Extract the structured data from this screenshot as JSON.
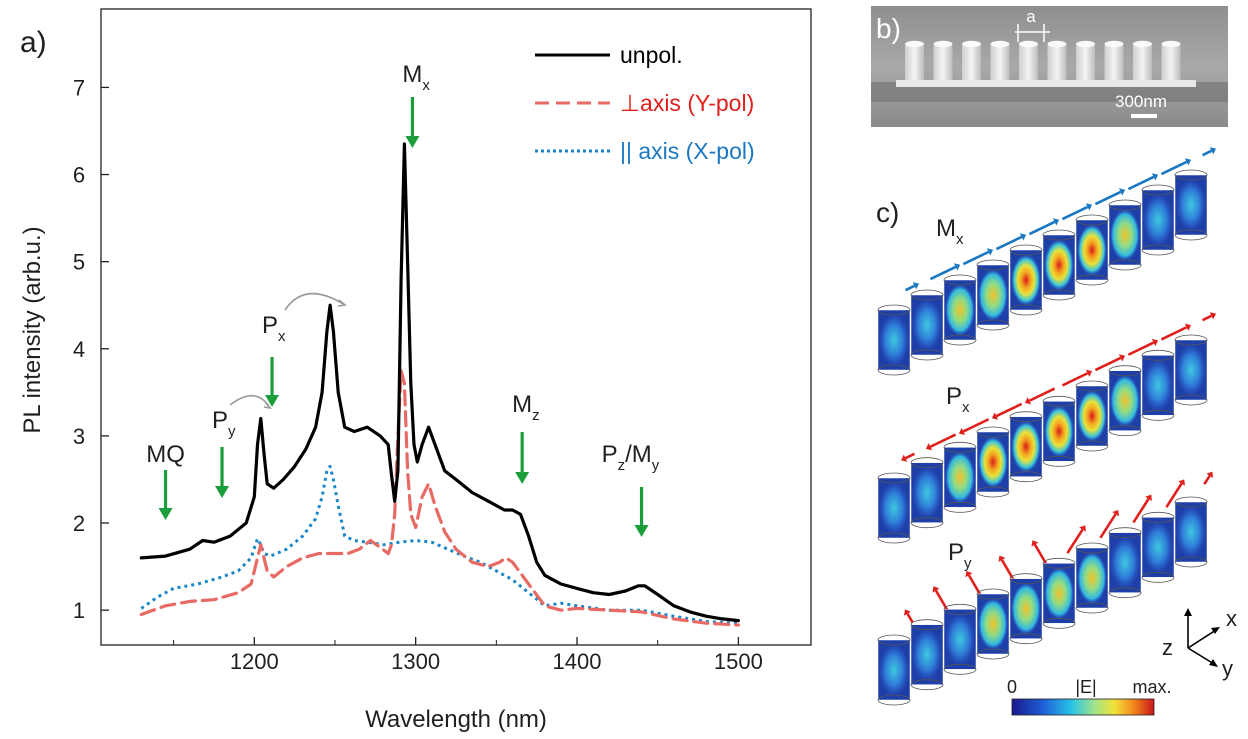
{
  "panels": {
    "a": "a)",
    "b": "b)",
    "c": "c)"
  },
  "chart_data": {
    "type": "line",
    "xlabel": "Wavelength (nm)",
    "ylabel": "PL intensity  (arb.u.)",
    "xlim": [
      1105,
      1545
    ],
    "ylim": [
      0.6,
      7.9
    ],
    "xticks": [
      1200,
      1300,
      1400,
      1500
    ],
    "yticks": [
      1,
      2,
      3,
      4,
      5,
      6,
      7
    ],
    "grid": false,
    "legend_position": "top-right",
    "series": [
      {
        "name": "unpol.",
        "color": "#000000",
        "dash": "solid",
        "x": [
          1130,
          1145,
          1160,
          1168,
          1175,
          1185,
          1195,
          1200,
          1202,
          1204,
          1206,
          1208,
          1212,
          1218,
          1225,
          1232,
          1238,
          1242,
          1245,
          1247,
          1249,
          1252,
          1256,
          1262,
          1270,
          1278,
          1283,
          1285,
          1287,
          1289,
          1291,
          1293,
          1295,
          1297,
          1299,
          1301,
          1304,
          1308,
          1312,
          1318,
          1325,
          1335,
          1345,
          1355,
          1360,
          1365,
          1370,
          1375,
          1380,
          1385,
          1390,
          1400,
          1410,
          1420,
          1430,
          1438,
          1442,
          1450,
          1460,
          1470,
          1480,
          1490,
          1500
        ],
        "values": [
          1.6,
          1.62,
          1.7,
          1.8,
          1.78,
          1.85,
          2.0,
          2.3,
          2.9,
          3.2,
          2.8,
          2.45,
          2.4,
          2.5,
          2.65,
          2.85,
          3.1,
          3.5,
          4.2,
          4.5,
          4.2,
          3.5,
          3.1,
          3.05,
          3.1,
          3.0,
          2.9,
          2.55,
          2.25,
          2.6,
          4.8,
          6.35,
          5.0,
          3.6,
          2.9,
          2.7,
          2.9,
          3.1,
          2.9,
          2.6,
          2.5,
          2.35,
          2.25,
          2.15,
          2.15,
          2.1,
          1.85,
          1.55,
          1.4,
          1.35,
          1.3,
          1.25,
          1.2,
          1.18,
          1.22,
          1.28,
          1.28,
          1.18,
          1.05,
          0.98,
          0.93,
          0.9,
          0.88
        ]
      },
      {
        "name": "⊥axis (Y-pol)",
        "color": "#e86a64",
        "dash": "dashed",
        "x": [
          1130,
          1145,
          1160,
          1175,
          1190,
          1198,
          1202,
          1204,
          1206,
          1208,
          1212,
          1220,
          1230,
          1240,
          1248,
          1258,
          1265,
          1272,
          1278,
          1283,
          1285,
          1287,
          1289,
          1291,
          1293,
          1295,
          1297,
          1300,
          1304,
          1308,
          1312,
          1318,
          1325,
          1335,
          1345,
          1352,
          1356,
          1360,
          1366,
          1372,
          1380,
          1390,
          1400,
          1420,
          1440,
          1460,
          1480,
          1500
        ],
        "values": [
          0.95,
          1.05,
          1.1,
          1.12,
          1.2,
          1.3,
          1.6,
          1.75,
          1.6,
          1.45,
          1.38,
          1.5,
          1.6,
          1.65,
          1.65,
          1.65,
          1.7,
          1.8,
          1.72,
          1.65,
          1.75,
          2.1,
          3.0,
          3.75,
          3.6,
          2.6,
          2.1,
          1.95,
          2.3,
          2.45,
          2.2,
          1.9,
          1.7,
          1.55,
          1.5,
          1.55,
          1.6,
          1.55,
          1.4,
          1.25,
          1.05,
          1.0,
          1.02,
          1.0,
          0.98,
          0.9,
          0.85,
          0.83
        ]
      },
      {
        "name": "|| axis (X-pol)",
        "color": "#1a86c8",
        "dash": "dotted",
        "x": [
          1130,
          1140,
          1150,
          1165,
          1180,
          1190,
          1198,
          1202,
          1204,
          1206,
          1210,
          1220,
          1230,
          1238,
          1242,
          1245,
          1247,
          1249,
          1252,
          1256,
          1262,
          1270,
          1280,
          1290,
          1300,
          1310,
          1320,
          1330,
          1340,
          1350,
          1360,
          1370,
          1380,
          1390,
          1400,
          1420,
          1440,
          1460,
          1480,
          1500
        ],
        "values": [
          1.02,
          1.15,
          1.25,
          1.3,
          1.38,
          1.45,
          1.6,
          1.82,
          1.75,
          1.65,
          1.62,
          1.7,
          1.85,
          2.05,
          2.3,
          2.6,
          2.65,
          2.5,
          2.2,
          1.85,
          1.8,
          1.78,
          1.75,
          1.78,
          1.8,
          1.78,
          1.7,
          1.62,
          1.55,
          1.45,
          1.35,
          1.2,
          1.05,
          1.08,
          1.05,
          1.0,
          1.0,
          0.93,
          0.87,
          0.85
        ]
      }
    ],
    "annotations": [
      {
        "label": "MQ",
        "sub": "",
        "x": 1145
      },
      {
        "label": "P",
        "sub": "y",
        "x": 1180
      },
      {
        "label": "P",
        "sub": "x",
        "x": 1211
      },
      {
        "label": "M",
        "sub": "x",
        "x": 1298
      },
      {
        "label": "M",
        "sub": "z",
        "x": 1366
      },
      {
        "label": "P",
        "sub": "z",
        "tail": "/M",
        "sub2": "y",
        "x": 1440
      }
    ]
  },
  "inset_sem": {
    "label": "b)",
    "period_label": "a",
    "scale_label": "300nm"
  },
  "inset_modes": {
    "label": "c)",
    "mode_labels": [
      {
        "main": "M",
        "sub": "x"
      },
      {
        "main": "P",
        "sub": "x"
      },
      {
        "main": "P",
        "sub": "y"
      }
    ],
    "axes_labels": {
      "z": "z",
      "x": "x",
      "y": "y"
    },
    "colorbar": {
      "title": "|E|",
      "min_label": "0",
      "max_label": "max."
    },
    "colors": {
      "field_low": "#1a1a8c",
      "field_high": "#d81c1c",
      "arrow_mx": "#1a78c2",
      "arrow_p": "#e0201c",
      "marker": "#1b9d3c"
    }
  }
}
